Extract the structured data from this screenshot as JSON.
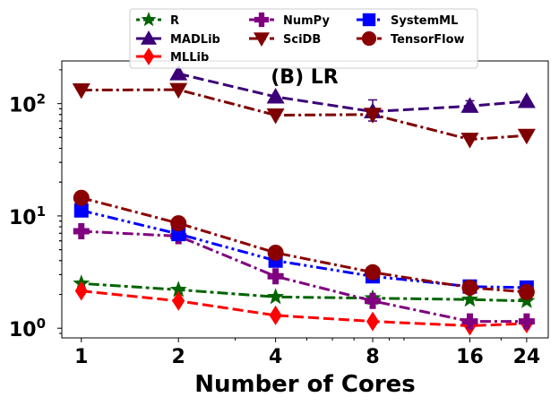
{
  "chart_data": {
    "type": "line",
    "title": "(B) LR",
    "xlabel": "Number of Cores",
    "ylabel": "",
    "x_scale": "log",
    "y_scale": "log",
    "x": [
      1,
      2,
      4,
      8,
      16,
      24
    ],
    "xticks": [
      "1",
      "2",
      "4",
      "8",
      "16",
      "24"
    ],
    "yticks": [
      {
        "value": 1,
        "base": "10",
        "exp": "0"
      },
      {
        "value": 10,
        "base": "10",
        "exp": "1"
      },
      {
        "value": 100,
        "base": "10",
        "exp": "2"
      }
    ],
    "xlim": [
      0.87,
      28
    ],
    "ylim": [
      0.82,
      240
    ],
    "legend_position": "top",
    "series": [
      {
        "name": "R",
        "color": "#006400",
        "marker": "star",
        "dash": "4 4 12 4",
        "values": [
          2.5,
          2.2,
          1.9,
          1.85,
          1.8,
          1.75
        ]
      },
      {
        "name": "MADLib",
        "color": "#3b0077",
        "marker": "triangle-up",
        "dash": "12 5",
        "values": [
          null,
          185,
          115,
          85,
          95,
          105
        ]
      },
      {
        "name": "MLLib",
        "color": "#ff0000",
        "marker": "diamond",
        "dash": "12 5",
        "values": [
          2.15,
          1.75,
          1.3,
          1.15,
          1.05,
          1.1
        ]
      },
      {
        "name": "NumPy",
        "color": "#800080",
        "marker": "plus",
        "dash": "12 4 3 4",
        "values": [
          7.3,
          6.6,
          2.9,
          1.75,
          1.15,
          1.15
        ]
      },
      {
        "name": "SciDB",
        "color": "#7f0000",
        "marker": "triangle-down",
        "dash": "12 4 3 4",
        "values": [
          132,
          133,
          79,
          80,
          48,
          52
        ]
      },
      {
        "name": "SystemML",
        "color": "#0000ff",
        "marker": "square",
        "dash": "12 4 3 4 3 4",
        "values": [
          11.2,
          6.9,
          4.0,
          2.9,
          2.35,
          2.3
        ]
      },
      {
        "name": "TensorFlow",
        "color": "#8b0000",
        "marker": "circle",
        "dash": "12 4 3 4",
        "values": [
          14.5,
          8.6,
          4.7,
          3.15,
          2.3,
          2.1
        ]
      }
    ],
    "error_bars": [
      {
        "series": "MADLib",
        "x": 8,
        "low": 70,
        "high": 108
      },
      {
        "series": "MADLib",
        "x": 16,
        "low": 85,
        "high": 106
      }
    ]
  }
}
